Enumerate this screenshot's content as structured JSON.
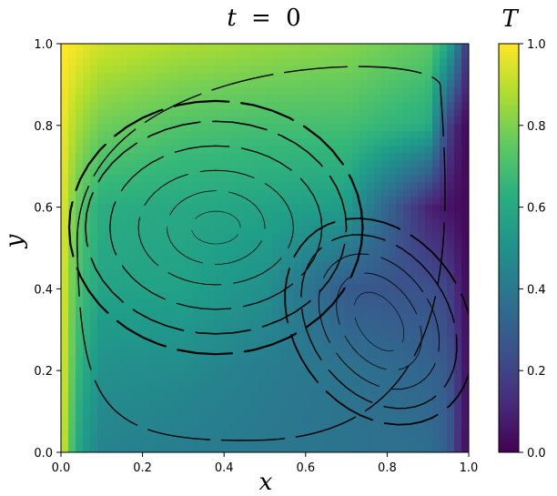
{
  "chart_data": {
    "type": "heatmap",
    "title": "t = 0",
    "title_parts": {
      "var": "t",
      "op": "=",
      "val": "0"
    },
    "xlabel": "x",
    "ylabel": "y",
    "colorbar_label": "T",
    "colormap": "viridis",
    "xlim": [
      0,
      1
    ],
    "ylim": [
      0,
      1
    ],
    "clim": [
      0,
      1
    ],
    "xticks": [
      "0.0",
      "0.2",
      "0.4",
      "0.6",
      "0.8",
      "1.0"
    ],
    "yticks": [
      "0.0",
      "0.2",
      "0.4",
      "0.6",
      "0.8",
      "1.0"
    ],
    "cticks": [
      "0.0",
      "0.2",
      "0.4",
      "0.6",
      "0.8",
      "1.0"
    ],
    "overlay": "streamlines",
    "vortices": [
      {
        "center": [
          0.38,
          0.55
        ],
        "rotation": "clockwise",
        "T": 0.6
      },
      {
        "center": [
          0.78,
          0.32
        ],
        "rotation": "clockwise",
        "T": 0.3
      }
    ],
    "field_samples": {
      "x": [
        0.0,
        0.02,
        0.05,
        0.1,
        0.3,
        0.5,
        0.7,
        0.9,
        0.95,
        0.98,
        1.0
      ],
      "rows": [
        {
          "y": 1.0,
          "T": [
            1.0,
            1.0,
            0.97,
            0.93,
            0.88,
            0.85,
            0.82,
            0.75,
            0.6,
            0.35,
            0.1
          ]
        },
        {
          "y": 0.8,
          "T": [
            1.0,
            0.92,
            0.85,
            0.78,
            0.72,
            0.7,
            0.7,
            0.62,
            0.2,
            0.06,
            0.02
          ]
        },
        {
          "y": 0.6,
          "T": [
            1.0,
            0.85,
            0.72,
            0.62,
            0.6,
            0.58,
            0.55,
            0.1,
            0.05,
            0.03,
            0.02
          ]
        },
        {
          "y": 0.4,
          "T": [
            1.0,
            0.82,
            0.68,
            0.58,
            0.57,
            0.5,
            0.28,
            0.25,
            0.2,
            0.08,
            0.02
          ]
        },
        {
          "y": 0.2,
          "T": [
            1.0,
            0.8,
            0.62,
            0.5,
            0.48,
            0.42,
            0.38,
            0.32,
            0.28,
            0.12,
            0.02
          ]
        },
        {
          "y": 0.0,
          "T": [
            1.0,
            0.75,
            0.55,
            0.45,
            0.42,
            0.4,
            0.38,
            0.36,
            0.3,
            0.1,
            0.02
          ]
        }
      ]
    }
  }
}
